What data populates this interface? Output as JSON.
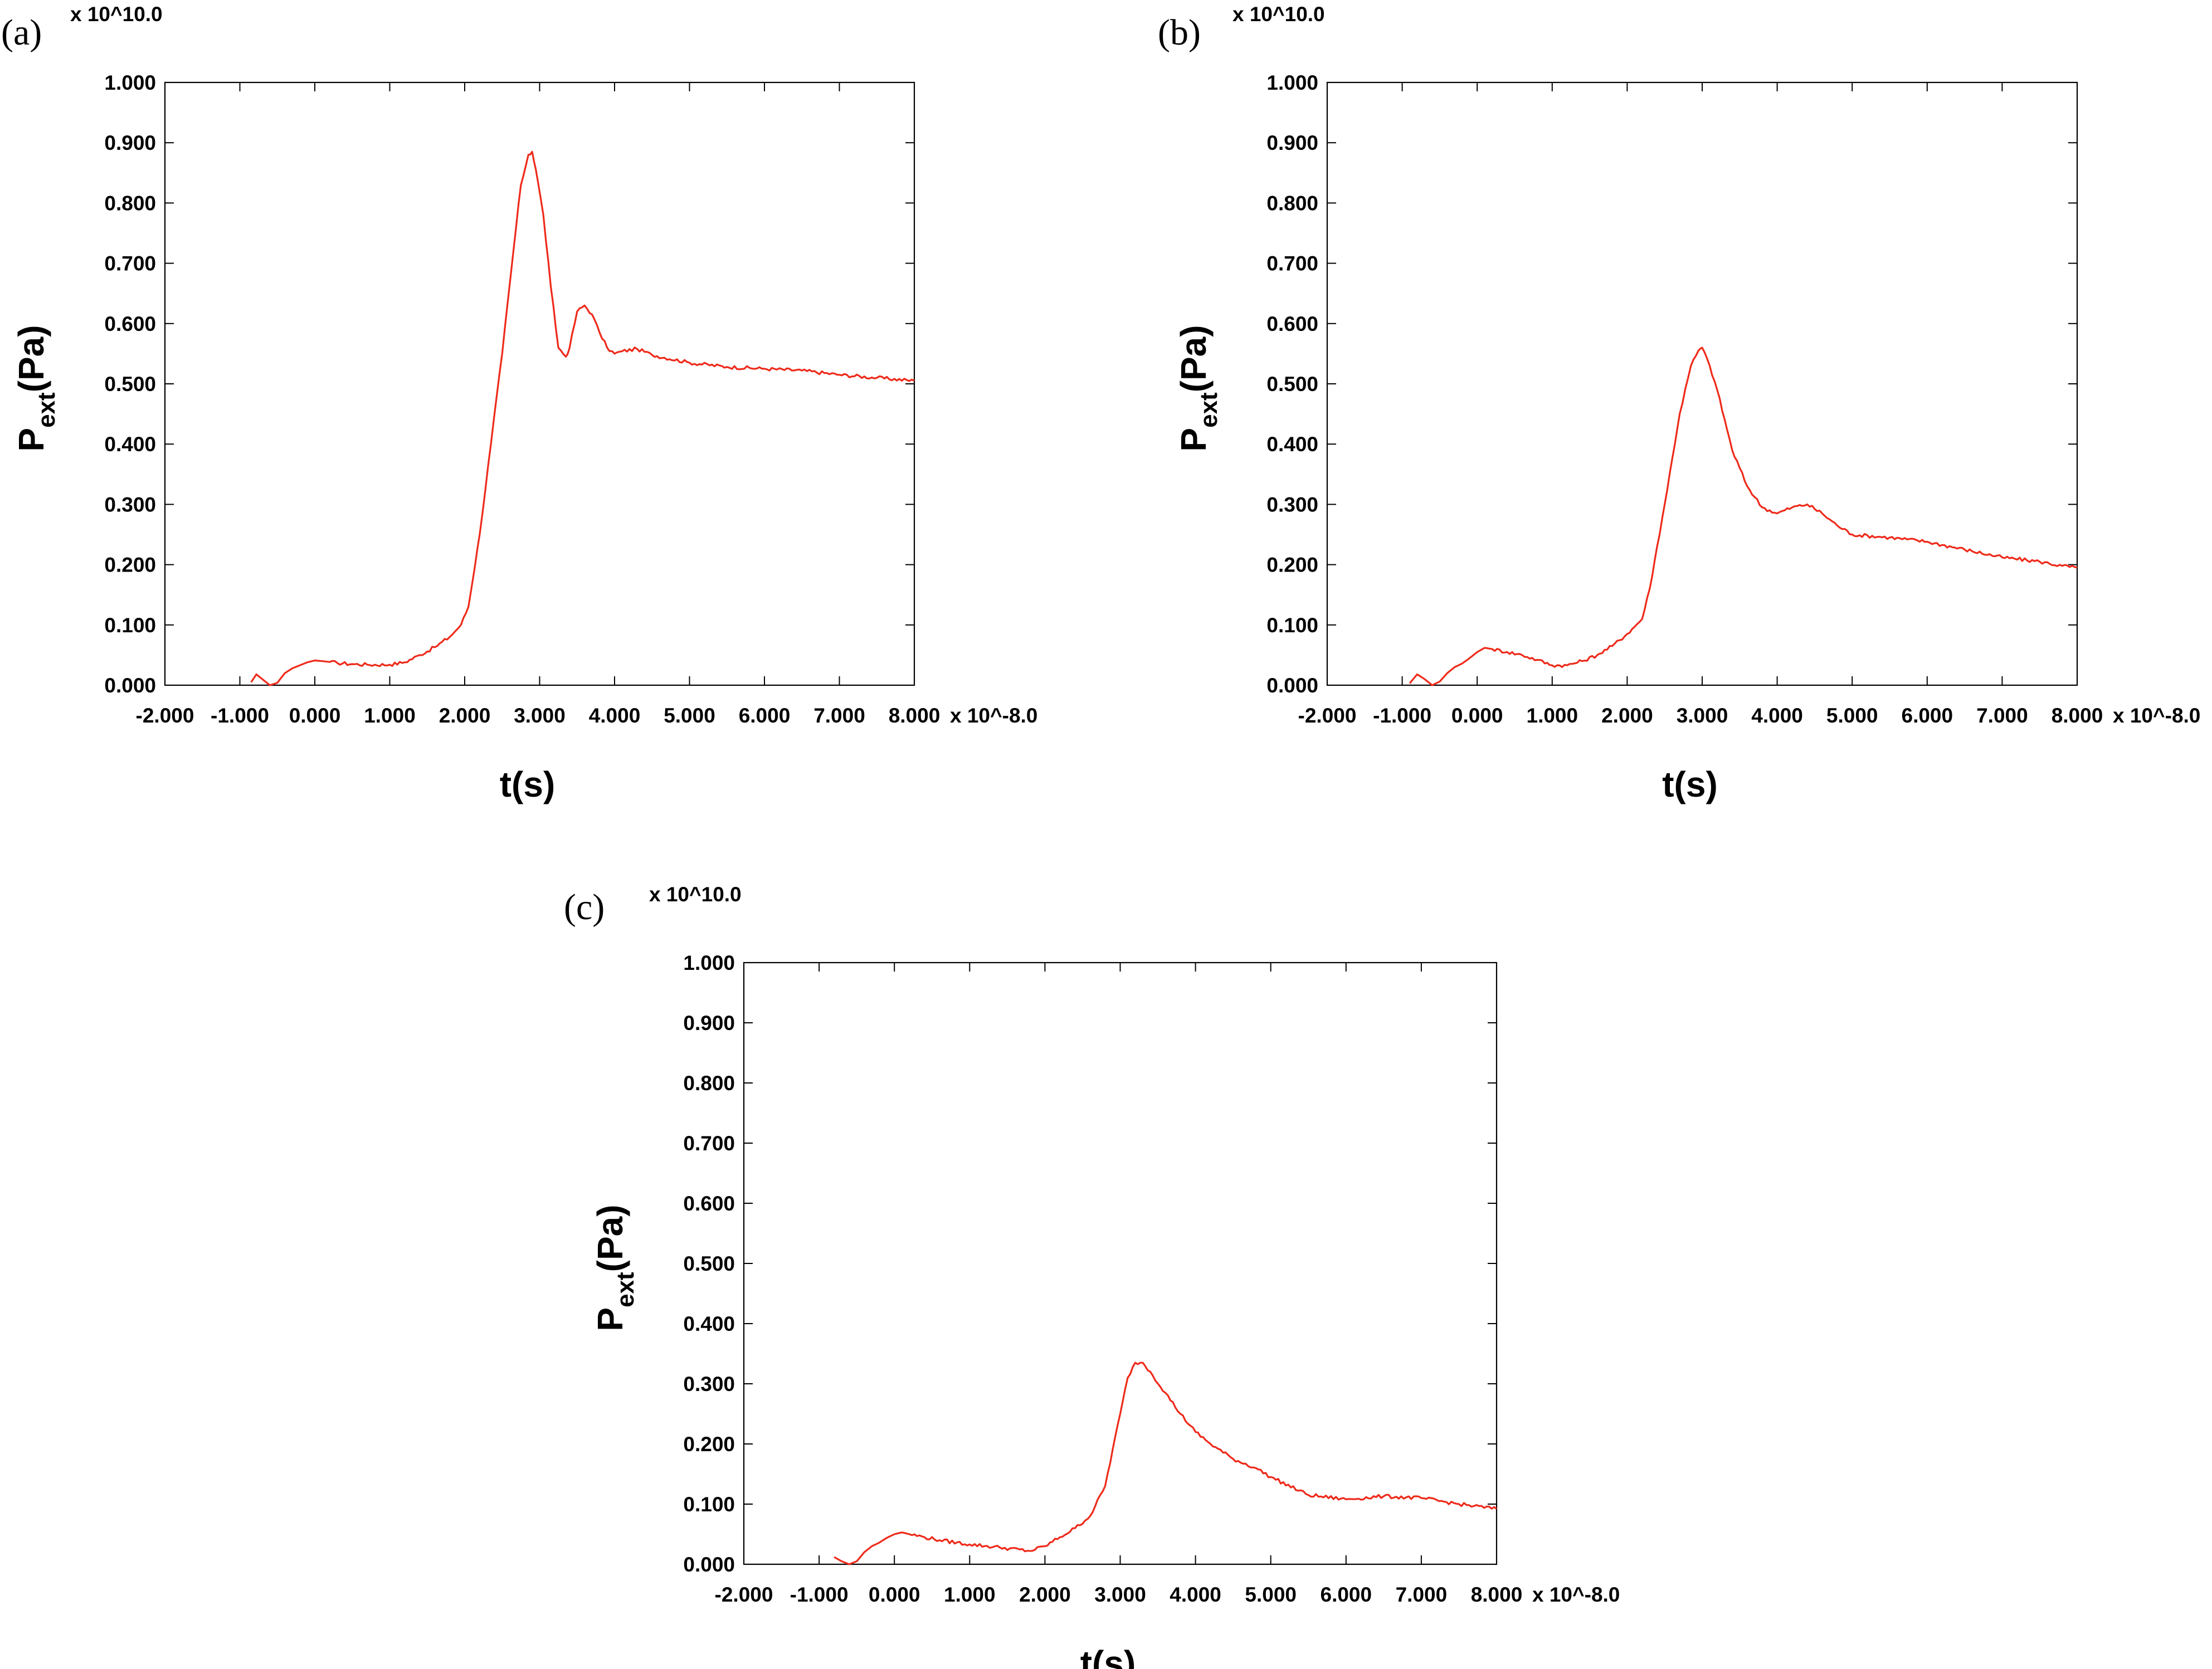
{
  "colors": {
    "series": "#ee2a1a",
    "axes": "#000000",
    "background": "#ffffff"
  },
  "chart_data": [
    {
      "panel_label": "(a)",
      "type": "line",
      "xlabel": "t(s)",
      "ylabel_main": "P",
      "ylabel_sub": "ext",
      "ylabel_unit": "(Pa)",
      "x_multiplier": "x 10^-8.0",
      "y_multiplier": "x 10^10.0",
      "xlim": [
        -2.0,
        8.0
      ],
      "ylim": [
        0.0,
        1.0
      ],
      "grid": false,
      "xticks": [
        "-2.000",
        "-1.000",
        "0.000",
        "1.000",
        "2.000",
        "3.000",
        "4.000",
        "5.000",
        "6.000",
        "7.000",
        "8.000"
      ],
      "yticks": [
        "0.000",
        "0.100",
        "0.200",
        "0.300",
        "0.400",
        "0.500",
        "0.600",
        "0.700",
        "0.800",
        "0.900",
        "1.000"
      ],
      "series": [
        {
          "x": [
            -0.85,
            -0.78,
            -0.7,
            -0.6,
            -0.5,
            -0.4,
            -0.3,
            -0.2,
            -0.1,
            0.0,
            0.1,
            0.3,
            0.5,
            0.7,
            1.0,
            1.2,
            1.4,
            1.6,
            1.8,
            1.95,
            2.05,
            2.2,
            2.35,
            2.5,
            2.65,
            2.75,
            2.85,
            2.9,
            2.95,
            3.05,
            3.15,
            3.25,
            3.35,
            3.4,
            3.5,
            3.6,
            3.7,
            3.8,
            3.9,
            4.0,
            4.1,
            4.3,
            4.5,
            5.0,
            5.5,
            6.0,
            6.5,
            7.0,
            7.5,
            8.0
          ],
          "y": [
            0.005,
            0.018,
            0.01,
            0.0,
            0.004,
            0.02,
            0.028,
            0.033,
            0.038,
            0.041,
            0.04,
            0.037,
            0.035,
            0.034,
            0.034,
            0.038,
            0.05,
            0.063,
            0.08,
            0.1,
            0.13,
            0.25,
            0.4,
            0.55,
            0.72,
            0.83,
            0.88,
            0.885,
            0.855,
            0.78,
            0.66,
            0.56,
            0.545,
            0.56,
            0.62,
            0.63,
            0.615,
            0.585,
            0.56,
            0.55,
            0.554,
            0.558,
            0.548,
            0.535,
            0.528,
            0.525,
            0.522,
            0.515,
            0.51,
            0.505
          ]
        }
      ]
    },
    {
      "panel_label": "(b)",
      "type": "line",
      "xlabel": "t(s)",
      "ylabel_main": "P",
      "ylabel_sub": "ext",
      "ylabel_unit": "(Pa)",
      "x_multiplier": "x 10^-8.0",
      "y_multiplier": "x 10^10.0",
      "xlim": [
        -2.0,
        8.0
      ],
      "ylim": [
        0.0,
        1.0
      ],
      "grid": false,
      "xticks": [
        "-2.000",
        "-1.000",
        "0.000",
        "1.000",
        "2.000",
        "3.000",
        "4.000",
        "5.000",
        "6.000",
        "7.000",
        "8.000"
      ],
      "yticks": [
        "0.000",
        "0.100",
        "0.200",
        "0.300",
        "0.400",
        "0.500",
        "0.600",
        "0.700",
        "0.800",
        "0.900",
        "1.000"
      ],
      "series": [
        {
          "x": [
            -0.9,
            -0.8,
            -0.7,
            -0.6,
            -0.5,
            -0.4,
            -0.3,
            -0.2,
            -0.1,
            0.0,
            0.1,
            0.2,
            0.4,
            0.6,
            0.8,
            1.0,
            1.2,
            1.4,
            1.6,
            1.8,
            2.0,
            2.2,
            2.3,
            2.5,
            2.7,
            2.85,
            2.95,
            3.0,
            3.1,
            3.2,
            3.4,
            3.6,
            3.8,
            4.0,
            4.2,
            4.4,
            4.6,
            4.8,
            5.0,
            5.5,
            6.0,
            6.5,
            7.0,
            7.5,
            7.8,
            8.0
          ],
          "y": [
            0.003,
            0.018,
            0.01,
            0.0,
            0.006,
            0.02,
            0.03,
            0.036,
            0.045,
            0.055,
            0.062,
            0.06,
            0.055,
            0.05,
            0.042,
            0.033,
            0.033,
            0.04,
            0.05,
            0.065,
            0.085,
            0.11,
            0.16,
            0.3,
            0.45,
            0.53,
            0.555,
            0.56,
            0.53,
            0.49,
            0.39,
            0.33,
            0.295,
            0.285,
            0.295,
            0.3,
            0.285,
            0.265,
            0.25,
            0.245,
            0.238,
            0.225,
            0.212,
            0.205,
            0.198,
            0.195
          ]
        }
      ]
    },
    {
      "panel_label": "(c)",
      "type": "line",
      "xlabel": "t(s)",
      "ylabel_main": "P",
      "ylabel_sub": "ext",
      "ylabel_unit": "(Pa)",
      "x_multiplier": "x 10^-8.0",
      "y_multiplier": "x 10^10.0",
      "xlim": [
        -2.0,
        8.0
      ],
      "ylim": [
        0.0,
        1.0
      ],
      "grid": false,
      "xticks": [
        "-2.000",
        "-1.000",
        "0.000",
        "1.000",
        "2.000",
        "3.000",
        "4.000",
        "5.000",
        "6.000",
        "7.000",
        "8.000"
      ],
      "yticks": [
        "0.000",
        "0.100",
        "0.200",
        "0.300",
        "0.400",
        "0.500",
        "0.600",
        "0.700",
        "0.800",
        "0.900",
        "1.000"
      ],
      "series": [
        {
          "x": [
            -0.8,
            -0.7,
            -0.6,
            -0.5,
            -0.4,
            -0.3,
            -0.2,
            -0.1,
            0.0,
            0.1,
            0.2,
            0.4,
            0.6,
            1.0,
            1.4,
            1.8,
            2.0,
            2.2,
            2.4,
            2.6,
            2.8,
            3.0,
            3.1,
            3.2,
            3.3,
            3.4,
            3.6,
            3.8,
            4.0,
            4.2,
            4.5,
            4.8,
            5.0,
            5.5,
            6.0,
            6.5,
            7.0,
            7.5,
            8.0
          ],
          "y": [
            0.012,
            0.005,
            0.0,
            0.005,
            0.02,
            0.03,
            0.036,
            0.044,
            0.05,
            0.053,
            0.05,
            0.045,
            0.04,
            0.033,
            0.028,
            0.022,
            0.03,
            0.045,
            0.06,
            0.08,
            0.13,
            0.25,
            0.31,
            0.335,
            0.335,
            0.32,
            0.285,
            0.25,
            0.22,
            0.2,
            0.175,
            0.16,
            0.145,
            0.115,
            0.108,
            0.113,
            0.11,
            0.1,
            0.092
          ]
        }
      ]
    }
  ]
}
